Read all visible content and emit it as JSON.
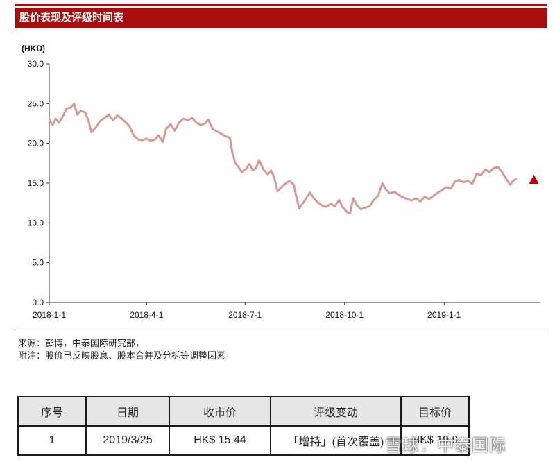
{
  "header": {
    "title": "股价表现及评级时间表"
  },
  "chart_data": {
    "type": "line",
    "ylabel": "(HKD)",
    "ylim": [
      0,
      30
    ],
    "yticks": [
      "0.0",
      "5.0",
      "10.0",
      "15.0",
      "20.0",
      "25.0",
      "30.0"
    ],
    "xlim": [
      "2018-01-01",
      "2019-03-31"
    ],
    "xticks": [
      {
        "date": "2018-01-01",
        "label": "2018-1-1"
      },
      {
        "date": "2018-04-01",
        "label": "2018-4-1"
      },
      {
        "date": "2018-07-01",
        "label": "2018-7-1"
      },
      {
        "date": "2018-10-01",
        "label": "2018-10-1"
      },
      {
        "date": "2019-01-01",
        "label": "2019-1-1"
      }
    ],
    "line_color": "#d69a96",
    "marker_color": "#c00000",
    "series": [
      {
        "points": [
          [
            "2018-01-01",
            23.0
          ],
          [
            "2018-01-04",
            22.3
          ],
          [
            "2018-01-07",
            23.1
          ],
          [
            "2018-01-10",
            22.6
          ],
          [
            "2018-01-14",
            23.5
          ],
          [
            "2018-01-17",
            24.4
          ],
          [
            "2018-01-21",
            24.5
          ],
          [
            "2018-01-24",
            25.0
          ],
          [
            "2018-01-27",
            23.6
          ],
          [
            "2018-01-30",
            24.1
          ],
          [
            "2018-02-03",
            23.9
          ],
          [
            "2018-02-06",
            23.0
          ],
          [
            "2018-02-09",
            21.4
          ],
          [
            "2018-02-13",
            22.0
          ],
          [
            "2018-02-17",
            22.8
          ],
          [
            "2018-02-21",
            23.2
          ],
          [
            "2018-02-25",
            23.6
          ],
          [
            "2018-03-01",
            22.9
          ],
          [
            "2018-03-05",
            23.5
          ],
          [
            "2018-03-09",
            23.1
          ],
          [
            "2018-03-12",
            22.7
          ],
          [
            "2018-03-16",
            22.2
          ],
          [
            "2018-03-20",
            21.0
          ],
          [
            "2018-03-24",
            20.5
          ],
          [
            "2018-03-28",
            20.4
          ],
          [
            "2018-04-01",
            20.6
          ],
          [
            "2018-04-05",
            20.3
          ],
          [
            "2018-04-09",
            20.5
          ],
          [
            "2018-04-12",
            21.0
          ],
          [
            "2018-04-16",
            20.2
          ],
          [
            "2018-04-19",
            21.8
          ],
          [
            "2018-04-23",
            22.4
          ],
          [
            "2018-04-27",
            21.6
          ],
          [
            "2018-05-01",
            22.6
          ],
          [
            "2018-05-05",
            23.1
          ],
          [
            "2018-05-09",
            22.9
          ],
          [
            "2018-05-13",
            23.2
          ],
          [
            "2018-05-17",
            22.6
          ],
          [
            "2018-05-21",
            22.3
          ],
          [
            "2018-05-25",
            22.5
          ],
          [
            "2018-05-28",
            23.0
          ],
          [
            "2018-06-01",
            21.8
          ],
          [
            "2018-06-05",
            21.5
          ],
          [
            "2018-06-09",
            21.2
          ],
          [
            "2018-06-13",
            20.9
          ],
          [
            "2018-06-17",
            20.7
          ],
          [
            "2018-06-19",
            19.0
          ],
          [
            "2018-06-22",
            17.5
          ],
          [
            "2018-06-25",
            17.0
          ],
          [
            "2018-06-28",
            16.4
          ],
          [
            "2018-07-02",
            16.8
          ],
          [
            "2018-07-05",
            17.4
          ],
          [
            "2018-07-08",
            16.6
          ],
          [
            "2018-07-11",
            16.9
          ],
          [
            "2018-07-14",
            17.9
          ],
          [
            "2018-07-18",
            16.7
          ],
          [
            "2018-07-22",
            16.1
          ],
          [
            "2018-07-25",
            16.6
          ],
          [
            "2018-07-28",
            15.7
          ],
          [
            "2018-07-31",
            14.0
          ],
          [
            "2018-08-03",
            14.4
          ],
          [
            "2018-08-07",
            14.9
          ],
          [
            "2018-08-11",
            15.3
          ],
          [
            "2018-08-15",
            14.8
          ],
          [
            "2018-08-17",
            13.5
          ],
          [
            "2018-08-20",
            11.8
          ],
          [
            "2018-08-23",
            12.4
          ],
          [
            "2018-08-27",
            13.2
          ],
          [
            "2018-08-30",
            13.8
          ],
          [
            "2018-09-02",
            13.2
          ],
          [
            "2018-09-06",
            12.6
          ],
          [
            "2018-09-10",
            12.2
          ],
          [
            "2018-09-14",
            12.0
          ],
          [
            "2018-09-18",
            12.4
          ],
          [
            "2018-09-22",
            12.1
          ],
          [
            "2018-09-26",
            12.9
          ],
          [
            "2018-09-29",
            12.0
          ],
          [
            "2018-10-03",
            11.4
          ],
          [
            "2018-10-06",
            11.2
          ],
          [
            "2018-10-09",
            13.1
          ],
          [
            "2018-10-12",
            12.3
          ],
          [
            "2018-10-16",
            11.7
          ],
          [
            "2018-10-20",
            11.9
          ],
          [
            "2018-10-24",
            12.1
          ],
          [
            "2018-10-28",
            12.9
          ],
          [
            "2018-11-01",
            13.4
          ],
          [
            "2018-11-05",
            15.0
          ],
          [
            "2018-11-08",
            14.2
          ],
          [
            "2018-11-12",
            13.7
          ],
          [
            "2018-11-16",
            13.9
          ],
          [
            "2018-11-20",
            13.5
          ],
          [
            "2018-11-24",
            13.2
          ],
          [
            "2018-11-28",
            13.0
          ],
          [
            "2018-12-02",
            12.8
          ],
          [
            "2018-12-06",
            13.1
          ],
          [
            "2018-12-10",
            12.7
          ],
          [
            "2018-12-14",
            13.3
          ],
          [
            "2018-12-18",
            13.0
          ],
          [
            "2018-12-22",
            13.4
          ],
          [
            "2018-12-26",
            13.8
          ],
          [
            "2018-12-30",
            14.1
          ],
          [
            "2019-01-03",
            14.5
          ],
          [
            "2019-01-07",
            14.3
          ],
          [
            "2019-01-11",
            15.2
          ],
          [
            "2019-01-15",
            15.4
          ],
          [
            "2019-01-19",
            15.1
          ],
          [
            "2019-01-23",
            15.3
          ],
          [
            "2019-01-27",
            14.9
          ],
          [
            "2019-01-31",
            16.2
          ],
          [
            "2019-02-04",
            16.0
          ],
          [
            "2019-02-08",
            16.7
          ],
          [
            "2019-02-12",
            16.4
          ],
          [
            "2019-02-16",
            16.9
          ],
          [
            "2019-02-20",
            17.0
          ],
          [
            "2019-02-24",
            16.3
          ],
          [
            "2019-02-28",
            15.4
          ],
          [
            "2019-03-03",
            14.8
          ],
          [
            "2019-03-06",
            15.3
          ],
          [
            "2019-03-09",
            15.6
          ]
        ]
      }
    ],
    "markers": [
      {
        "date": "2019-03-25",
        "value": 15.44,
        "shape": "triangle"
      }
    ]
  },
  "notes": {
    "source": "来源：彭博，中泰国际研究部，",
    "remark": "附注：股价已反映股息、股本合并及分拆等调整因素"
  },
  "rating_table": {
    "headers": [
      "序号",
      "日期",
      "收市价",
      "评级变动",
      "目标价"
    ],
    "rows": [
      [
        "1",
        "2019/3/25",
        "HK$ 15.44",
        "「增持」(首次覆盖)",
        "HK$ 19.9"
      ]
    ]
  },
  "watermark": "雪球：中泰国际"
}
